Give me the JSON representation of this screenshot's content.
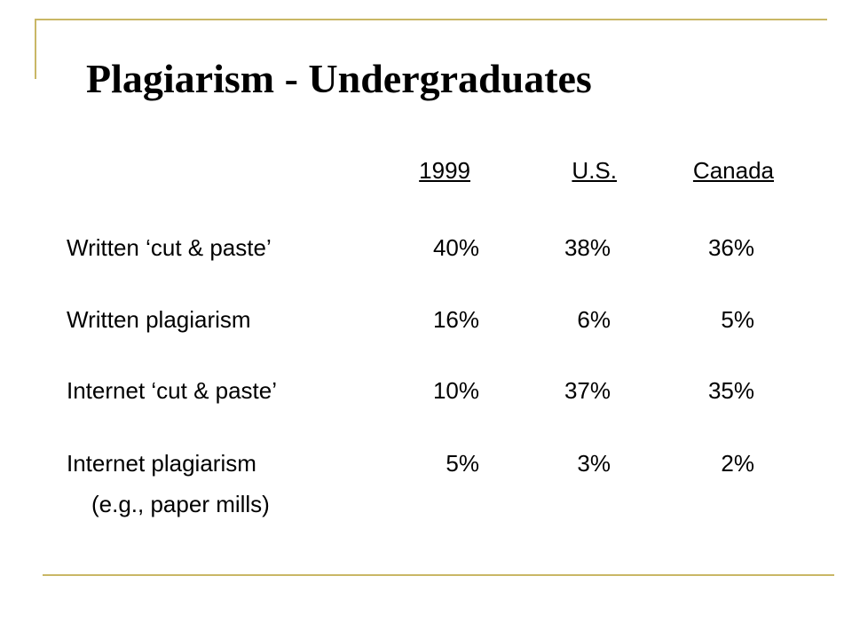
{
  "title": "Plagiarism - Undergraduates",
  "table": {
    "columns": [
      "1999",
      "U.S.",
      "Canada"
    ],
    "rows": [
      {
        "label": [
          "Written ‘cut & paste’"
        ],
        "values": [
          "40%",
          "38%",
          "36%"
        ]
      },
      {
        "label": [
          "Written plagiarism"
        ],
        "values": [
          "16%",
          "6%",
          "5%"
        ]
      },
      {
        "label": [
          "Internet ‘cut & paste’"
        ],
        "values": [
          "10%",
          "37%",
          "35%"
        ]
      },
      {
        "label": [
          "Internet plagiarism",
          "(e.g., paper mills)"
        ],
        "values": [
          "5%",
          "3%",
          "2%"
        ]
      }
    ]
  }
}
